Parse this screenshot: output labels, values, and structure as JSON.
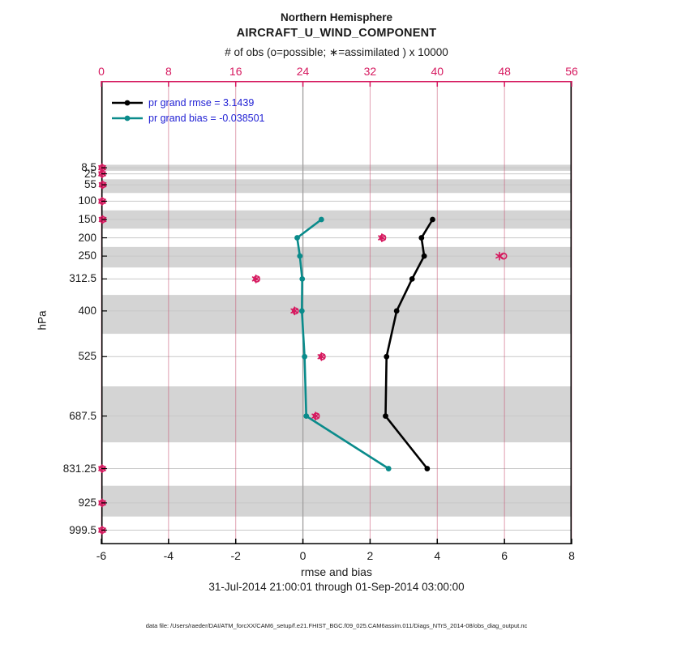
{
  "title": {
    "line1": "Northern Hemisphere",
    "line2": "AIRCRAFT_U_WIND_COMPONENT"
  },
  "subtitle": "31-Jul-2014 21:00:01 through 01-Sep-2014 03:00:00",
  "footer": "data file: /Users/raeder/DAI/ATM_forcXX/CAM6_setup/f.e21.FHIST_BGC.f09_025.CAM6assim.011/Diags_NTrS_2014-08/obs_diag_output.nc",
  "colors": {
    "obs_pink": "#d6195f",
    "rose_grid": "rgba(198,80,112,0.55)",
    "teal": "#0a8b8b",
    "black": "#000000",
    "legend_blue": "#2121d4",
    "band_gray": "#d4d4d4",
    "h_grid": "#c8c8c8",
    "zero_line": "#a0a0a0"
  },
  "legend": [
    {
      "label": "pr grand rmse = 3.1439",
      "color": "#000000"
    },
    {
      "label": "pr grand bias = -0.038501",
      "color": "#0a8b8b"
    }
  ],
  "chart_data": {
    "type": "line",
    "orientation": "vertical-profile",
    "grid": true,
    "x_axis_bottom": {
      "label": "rmse and bias",
      "range": [
        -6,
        8
      ],
      "ticks": [
        -6,
        -4,
        -2,
        0,
        2,
        4,
        6,
        8
      ]
    },
    "x_axis_top": {
      "label": "# of obs (o=possible; ∗=assimilated ) x 10000",
      "range": [
        0,
        56
      ],
      "ticks": [
        0,
        8,
        16,
        24,
        32,
        40,
        48,
        56
      ]
    },
    "y_axis": {
      "label": "hPa",
      "direction": "pressure-increasing-downward",
      "levels": [
        8.5,
        25,
        55,
        100,
        150,
        200,
        250,
        312.5,
        400,
        525,
        687.5,
        831.25,
        925,
        999.5
      ]
    },
    "shaded_levels": [
      8.5,
      55,
      150,
      250,
      400,
      687.5,
      925
    ],
    "series": [
      {
        "name": "pr grand rmse",
        "color": "#000000",
        "x_axis": "bottom",
        "points": [
          {
            "level": 150,
            "value": 3.86
          },
          {
            "level": 200,
            "value": 3.53
          },
          {
            "level": 250,
            "value": 3.61
          },
          {
            "level": 312.5,
            "value": 3.25
          },
          {
            "level": 400,
            "value": 2.79
          },
          {
            "level": 525,
            "value": 2.49
          },
          {
            "level": 687.5,
            "value": 2.46
          },
          {
            "level": 831.25,
            "value": 3.7
          }
        ]
      },
      {
        "name": "pr grand bias",
        "color": "#0a8b8b",
        "x_axis": "bottom",
        "points": [
          {
            "level": 150,
            "value": 0.55
          },
          {
            "level": 200,
            "value": -0.17
          },
          {
            "level": 250,
            "value": -0.09
          },
          {
            "level": 312.5,
            "value": -0.02
          },
          {
            "level": 400,
            "value": -0.03
          },
          {
            "level": 525,
            "value": 0.05
          },
          {
            "level": 687.5,
            "value": 0.1
          },
          {
            "level": 831.25,
            "value": 2.55
          }
        ]
      }
    ],
    "obs_counts": {
      "x_axis": "top",
      "unit": "x 10000",
      "points": [
        {
          "level": 8.5,
          "possible": 0.1,
          "assimilated": 0.1
        },
        {
          "level": 25,
          "possible": 0.1,
          "assimilated": 0.1
        },
        {
          "level": 55,
          "possible": 0.15,
          "assimilated": 0.15
        },
        {
          "level": 100,
          "possible": 0.1,
          "assimilated": 0.1
        },
        {
          "level": 150,
          "possible": 0.15,
          "assimilated": 0.15
        },
        {
          "level": 200,
          "possible": 33.5,
          "assimilated": 33.4
        },
        {
          "level": 250,
          "possible": 47.9,
          "assimilated": 47.4
        },
        {
          "level": 312.5,
          "possible": 18.5,
          "assimilated": 18.4
        },
        {
          "level": 400,
          "possible": 23.1,
          "assimilated": 23.0
        },
        {
          "level": 525,
          "possible": 26.3,
          "assimilated": 26.2
        },
        {
          "level": 687.5,
          "possible": 25.6,
          "assimilated": 25.5
        },
        {
          "level": 831.25,
          "possible": 0.1,
          "assimilated": 0.1
        },
        {
          "level": 925,
          "possible": 0.1,
          "assimilated": 0.1
        },
        {
          "level": 999.5,
          "possible": 0.1,
          "assimilated": 0.1
        }
      ]
    }
  }
}
